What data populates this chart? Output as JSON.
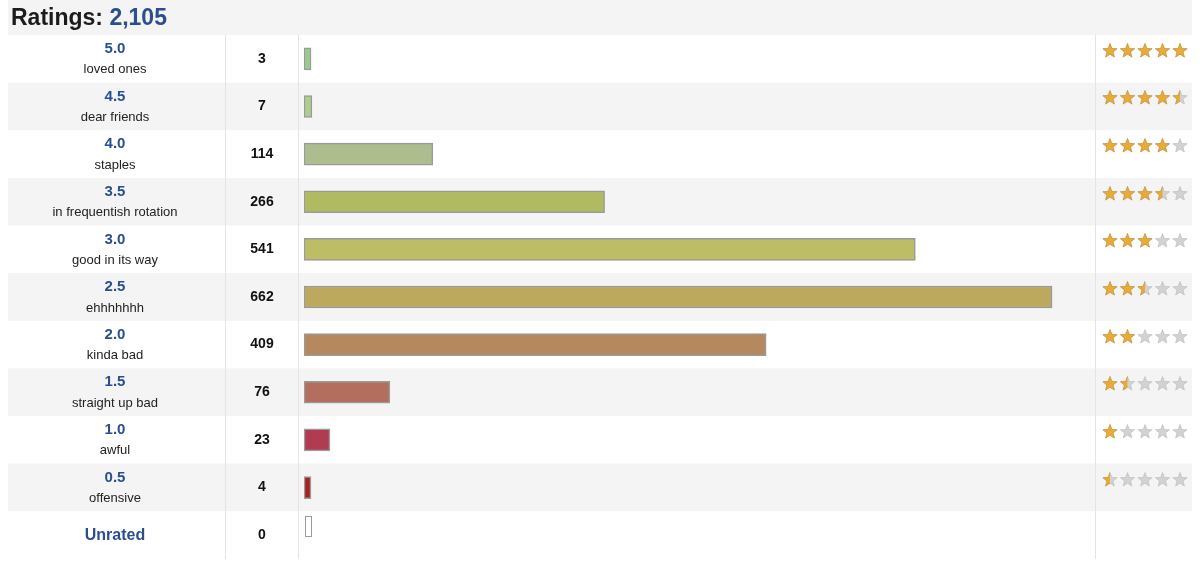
{
  "chart_data": {
    "type": "bar",
    "orientation": "horizontal",
    "title": "Ratings: 2,105",
    "categories": [
      "5.0\nloved ones",
      "4.5\ndear friends",
      "4.0\nstaples",
      "3.5\nin frequentish rotation",
      "3.0\ngood in its way",
      "2.5\nehhhhhhh",
      "2.0\nkinda bad",
      "1.5\nstraight up bad",
      "1.0\nawful",
      "0.5\noffensive",
      "Unrated"
    ],
    "values": [
      3,
      7,
      114,
      266,
      541,
      662,
      409,
      76,
      23,
      4,
      0
    ],
    "colors": [
      "#9dc98e",
      "#abcf8f",
      "#adbd8e",
      "#b0bb61",
      "#bcbd65",
      "#bca95e",
      "#b5885e",
      "#b36e5e",
      "#b13c52",
      "#a4231f",
      "#ffffff"
    ],
    "xlim": [
      0,
      700
    ],
    "tick_labels": "y",
    "legend": false,
    "data_labels": true
  }
}
